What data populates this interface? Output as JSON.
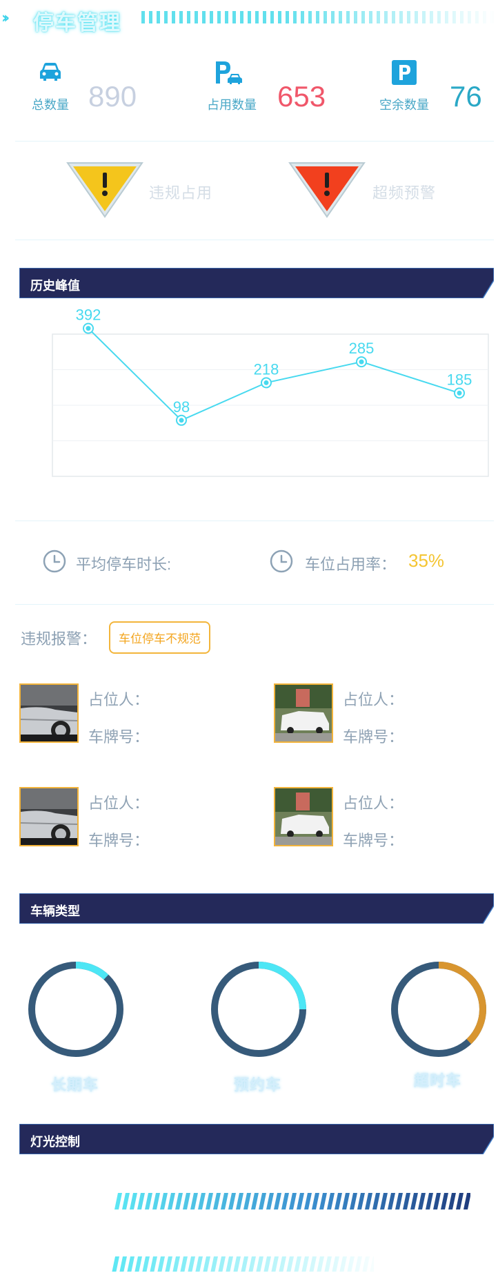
{
  "header": {
    "title": "停车管理"
  },
  "stats": [
    {
      "icon": "car-icon",
      "label": "总数量",
      "value": "890",
      "color": "#c7d0e0"
    },
    {
      "icon": "parking-car-icon",
      "label": "占用数量",
      "value": "653",
      "color": "#f0576a"
    },
    {
      "icon": "parking-icon",
      "label": "空余数量",
      "value": "76",
      "color": "#2aa8c6"
    }
  ],
  "warnings": [
    {
      "icon": "warning-yellow-icon",
      "label": "违规占用",
      "color": "#f4c51c"
    },
    {
      "icon": "warning-red-icon",
      "label": "超频预警",
      "color": "#f2401e"
    }
  ],
  "sections": {
    "history_peak": "历史峰值",
    "vehicle_type": "车辆类型",
    "light_control": "灯光控制"
  },
  "chart_data": {
    "type": "line",
    "x": [
      1,
      2,
      3,
      4,
      5
    ],
    "values": [
      392,
      98,
      218,
      285,
      185
    ],
    "ylim": [
      0,
      400
    ],
    "grid": true,
    "color": "#47d9ef"
  },
  "info": {
    "avg_duration_label": "平均停车时长:",
    "avg_duration_value": "",
    "occupancy_label": "车位占用率：",
    "occupancy_value": "35%"
  },
  "alarm": {
    "label": "违规报警：",
    "tag": "车位停车不规范"
  },
  "violations": [
    {
      "photo": "car-side-photo",
      "occupant_label": "占位人：",
      "occupant": "",
      "plate_label": "车牌号：",
      "plate": ""
    },
    {
      "photo": "street-cars-photo",
      "occupant_label": "占位人：",
      "occupant": "",
      "plate_label": "车牌号：",
      "plate": ""
    },
    {
      "photo": "car-side-photo",
      "occupant_label": "占位人：",
      "occupant": "",
      "plate_label": "车牌号：",
      "plate": ""
    },
    {
      "photo": "street-cars-photo",
      "occupant_label": "占位人：",
      "occupant": "",
      "plate_label": "车牌号：",
      "plate": ""
    }
  ],
  "vehicle_types": [
    {
      "label": "长期车",
      "fraction": 0.12,
      "color": "#4de6f5"
    },
    {
      "label": "预约车",
      "fraction": 0.25,
      "color": "#4de6f5"
    },
    {
      "label": "超时车",
      "fraction": 0.38,
      "color": "#d8952f"
    }
  ],
  "colors": {
    "section_bar": "#24295a",
    "donut_track": "#365a7a"
  }
}
